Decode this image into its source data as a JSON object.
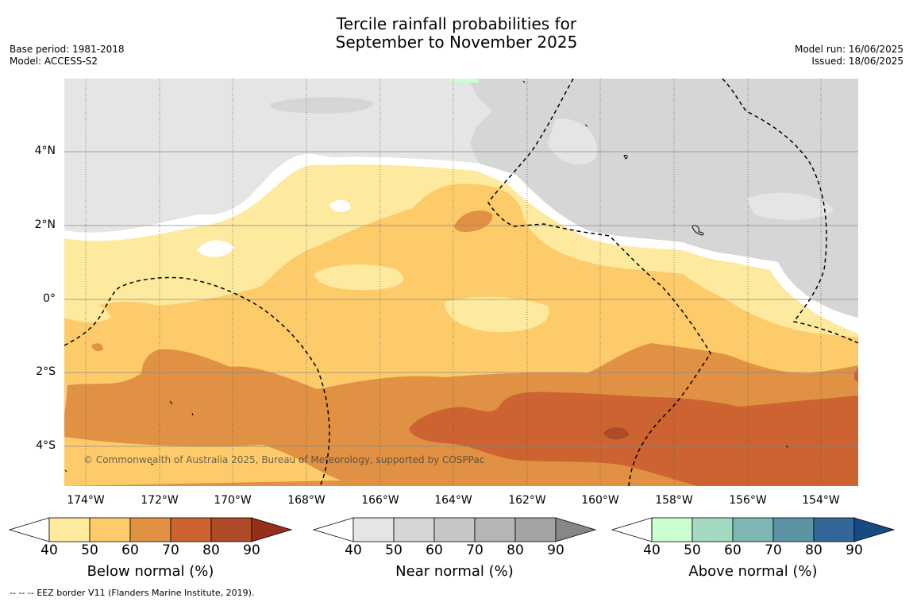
{
  "header": {
    "title_line1": "Tercile rainfall probabilities for",
    "title_line2": "September to November 2025",
    "base_period": "Base period: 1981-2018",
    "model": "Model: ACCESS-S2",
    "model_run": "Model run: 16/06/2025",
    "issued": "Issued: 18/06/2025"
  },
  "map": {
    "lat_labels": [
      "4°N",
      "2°N",
      "0°",
      "2°S",
      "4°S"
    ],
    "lon_labels": [
      "174°W",
      "172°W",
      "170°W",
      "168°W",
      "166°W",
      "164°W",
      "162°W",
      "160°W",
      "158°W",
      "156°W",
      "154°W"
    ],
    "copyright": "© Commonwealth of Australia 2025, Bureau of Meteorology, supported by COSPPac",
    "eez_border_style": "dashed black"
  },
  "legends": [
    {
      "title": "Below normal (%)",
      "ticks": [
        "40",
        "50",
        "60",
        "70",
        "80",
        "90"
      ],
      "colors": [
        "#ffffff",
        "#fdea9f",
        "#fdcb6a",
        "#e09143",
        "#cc6331",
        "#ad4a27",
        "#952f1c"
      ]
    },
    {
      "title": "Near normal (%)",
      "ticks": [
        "40",
        "50",
        "60",
        "70",
        "80",
        "90"
      ],
      "colors": [
        "#ffffff",
        "#e5e5e5",
        "#d6d6d6",
        "#c6c6c6",
        "#b5b5b5",
        "#a3a3a3",
        "#878787"
      ]
    },
    {
      "title": "Above normal (%)",
      "ticks": [
        "40",
        "50",
        "60",
        "70",
        "80",
        "90"
      ],
      "colors": [
        "#ffffff",
        "#c9ffd1",
        "#a3d9c0",
        "#7db6b2",
        "#5b93a2",
        "#336699",
        "#154b82"
      ]
    }
  ],
  "footer": {
    "eez_legend_marker": "--  --  --",
    "eez_legend_text": "EEZ border V11 (Flanders Marine Institute, 2019)."
  }
}
